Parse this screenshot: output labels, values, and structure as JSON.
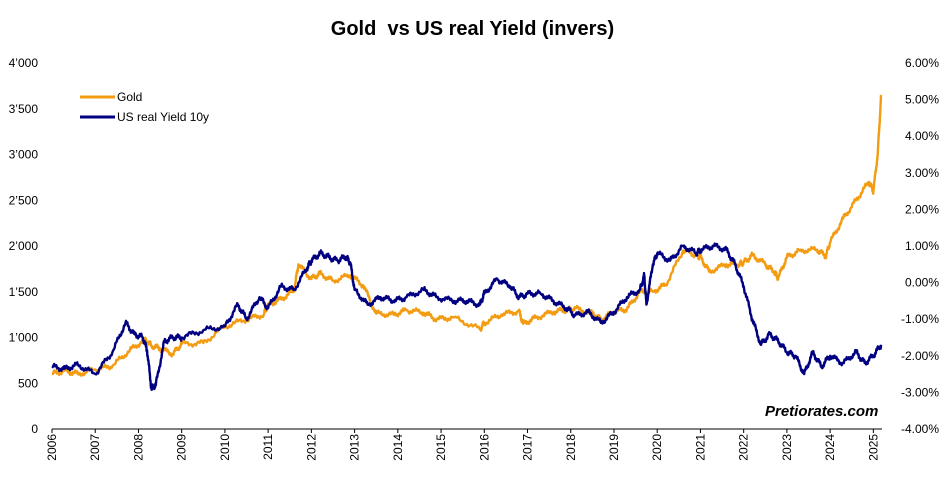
{
  "chart_data": {
    "type": "line",
    "title": "Gold  vs US real Yield (invers)",
    "xlabel": "",
    "ylabel_left": "",
    "ylabel_right": "",
    "x_ticks": [
      "2006",
      "2007",
      "2008",
      "2009",
      "2010",
      "2011",
      "2012",
      "2013",
      "2014",
      "2015",
      "2016",
      "2017",
      "2018",
      "2019",
      "2020",
      "2021",
      "2022",
      "2023",
      "2024",
      "2025"
    ],
    "x_range": [
      2006,
      2025.2
    ],
    "y_left": {
      "range": [
        0,
        4000
      ],
      "ticks": [
        0,
        500,
        1000,
        1500,
        2000,
        2500,
        3000,
        3500,
        4000
      ],
      "tick_labels": [
        "0",
        "500",
        "1’000",
        "1’500",
        "2’000",
        "2’500",
        "3’000",
        "3’500",
        "4’000"
      ]
    },
    "y_right": {
      "range": [
        -4.0,
        6.0
      ],
      "ticks": [
        -4,
        -3,
        -2,
        -1,
        0,
        1,
        2,
        3,
        4,
        5,
        6
      ],
      "tick_labels": [
        "-4.00%",
        "-3.00%",
        "-2.00%",
        "-1.00%",
        "0.00%",
        "1.00%",
        "2.00%",
        "3.00%",
        "4.00%",
        "5.00%",
        "6.00%"
      ]
    },
    "grid": false,
    "legend_position": "top-left",
    "annotation": "Pretiorates.com",
    "series": [
      {
        "name": "Gold",
        "axis": "left",
        "color": "#F39C12",
        "x": [
          2006.0,
          2006.3,
          2006.6,
          2007.0,
          2007.4,
          2007.8,
          2008.15,
          2008.3,
          2008.5,
          2008.8,
          2009.0,
          2009.5,
          2010.0,
          2010.5,
          2010.9,
          2011.0,
          2011.3,
          2011.6,
          2011.7,
          2012.0,
          2012.2,
          2012.5,
          2012.9,
          2013.2,
          2013.5,
          2013.9,
          2014.2,
          2014.6,
          2014.9,
          2015.3,
          2015.9,
          2016.0,
          2016.4,
          2016.8,
          2016.9,
          2017.2,
          2017.6,
          2017.9,
          2018.1,
          2018.5,
          2018.7,
          2019.0,
          2019.3,
          2019.6,
          2019.9,
          2020.2,
          2020.6,
          2020.9,
          2021.0,
          2021.2,
          2021.6,
          2021.9,
          2022.0,
          2022.2,
          2022.5,
          2022.7,
          2022.8,
          2023.0,
          2023.3,
          2023.7,
          2023.9,
          2024.0,
          2024.3,
          2024.6,
          2024.9,
          2025.0,
          2025.1,
          2025.18
        ],
        "values": [
          600,
          640,
          600,
          650,
          690,
          860,
          980,
          910,
          880,
          820,
          930,
          940,
          1120,
          1200,
          1250,
          1360,
          1420,
          1510,
          1800,
          1640,
          1700,
          1620,
          1680,
          1570,
          1260,
          1250,
          1300,
          1270,
          1200,
          1220,
          1090,
          1160,
          1250,
          1290,
          1150,
          1220,
          1280,
          1300,
          1320,
          1260,
          1200,
          1280,
          1310,
          1500,
          1500,
          1580,
          1950,
          1900,
          1880,
          1720,
          1800,
          1800,
          1820,
          1900,
          1800,
          1720,
          1650,
          1880,
          1950,
          1960,
          1890,
          2040,
          2300,
          2500,
          2700,
          2600,
          3000,
          3650
        ]
      },
      {
        "name": "US real Yield 10y",
        "axis": "right",
        "color": "#000080",
        "x": [
          2006.0,
          2006.3,
          2006.6,
          2007.0,
          2007.4,
          2007.7,
          2007.9,
          2008.1,
          2008.2,
          2008.3,
          2008.4,
          2008.6,
          2008.8,
          2009.0,
          2009.5,
          2010.0,
          2010.3,
          2010.5,
          2010.8,
          2011.0,
          2011.3,
          2011.6,
          2011.9,
          2012.0,
          2012.2,
          2012.4,
          2012.6,
          2012.8,
          2012.9,
          2013.0,
          2013.3,
          2013.6,
          2013.9,
          2014.2,
          2014.6,
          2014.9,
          2015.3,
          2015.6,
          2015.9,
          2016.0,
          2016.3,
          2016.6,
          2016.8,
          2017.0,
          2017.3,
          2017.6,
          2017.9,
          2018.1,
          2018.4,
          2018.7,
          2019.0,
          2019.3,
          2019.6,
          2019.7,
          2019.75,
          2019.9,
          2020.0,
          2020.3,
          2020.6,
          2020.9,
          2021.0,
          2021.3,
          2021.6,
          2021.8,
          2022.0,
          2022.2,
          2022.4,
          2022.6,
          2022.8,
          2023.0,
          2023.2,
          2023.4,
          2023.6,
          2023.8,
          2024.0,
          2024.3,
          2024.6,
          2024.8,
          2025.0,
          2025.18
        ],
        "values": [
          -2.3,
          -2.35,
          -2.25,
          -2.5,
          -1.9,
          -1.1,
          -1.4,
          -1.5,
          -1.85,
          -2.9,
          -2.8,
          -1.6,
          -1.5,
          -1.5,
          -1.3,
          -1.2,
          -0.6,
          -1.0,
          -0.4,
          -0.7,
          -0.1,
          -0.2,
          0.4,
          0.6,
          0.8,
          0.7,
          0.6,
          0.7,
          0.55,
          -0.2,
          -0.6,
          -0.4,
          -0.5,
          -0.4,
          -0.2,
          -0.4,
          -0.5,
          -0.5,
          -0.6,
          -0.3,
          0.1,
          -0.1,
          -0.4,
          -0.3,
          -0.3,
          -0.5,
          -0.7,
          -0.9,
          -0.8,
          -1.1,
          -0.8,
          -0.4,
          -0.2,
          0.2,
          -0.6,
          0.5,
          0.8,
          0.6,
          1.0,
          0.8,
          0.9,
          1.0,
          0.9,
          0.5,
          -0.1,
          -1.0,
          -1.7,
          -1.4,
          -1.6,
          -1.9,
          -2.0,
          -2.5,
          -1.9,
          -2.3,
          -2.0,
          -2.2,
          -1.9,
          -2.2,
          -2.0,
          -1.7
        ]
      }
    ]
  }
}
